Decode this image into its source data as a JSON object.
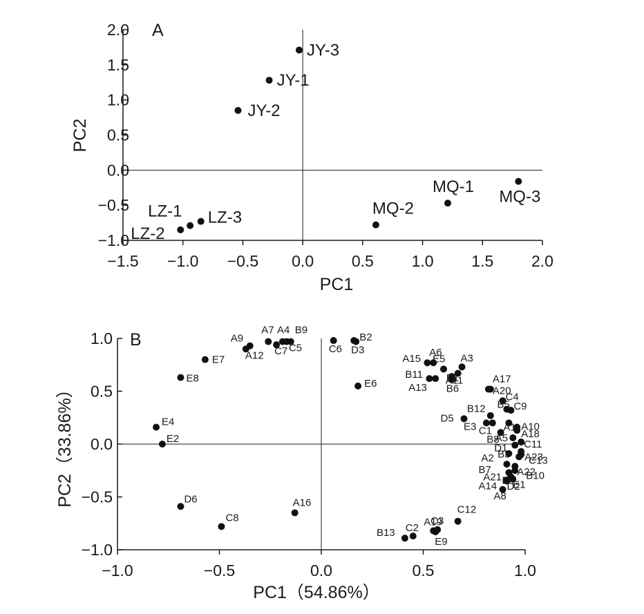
{
  "chart_data": [
    {
      "panel": "A",
      "type": "scatter",
      "xlabel": "PC1",
      "ylabel": "PC2",
      "xlim": [
        -1.5,
        2.0
      ],
      "ylim": [
        -1.0,
        2.0
      ],
      "xticks": [
        "−1.5",
        "−1.0",
        "−0.5",
        "0.0",
        "0.5",
        "1.0",
        "1.5",
        "2.0"
      ],
      "yticks": [
        "2.0",
        "1.5",
        "1.0",
        "0.5",
        "0.0",
        "−0.5",
        "−1.0"
      ],
      "reference_lines": {
        "x": 0,
        "y": 0
      },
      "points": [
        {
          "label": "JY-3",
          "x": -0.03,
          "y": 1.71
        },
        {
          "label": "JY-1",
          "x": -0.28,
          "y": 1.28
        },
        {
          "label": "JY-2",
          "x": -0.54,
          "y": 0.85
        },
        {
          "label": "MQ-1",
          "x": 1.21,
          "y": -0.47
        },
        {
          "label": "MQ-3",
          "x": 1.8,
          "y": -0.16
        },
        {
          "label": "MQ-2",
          "x": 0.61,
          "y": -0.78
        },
        {
          "label": "LZ-1",
          "x": -0.94,
          "y": -0.79
        },
        {
          "label": "LZ-2",
          "x": -1.02,
          "y": -0.85
        },
        {
          "label": "LZ-3",
          "x": -0.85,
          "y": -0.73
        }
      ]
    },
    {
      "panel": "B",
      "type": "scatter",
      "xlabel": "PC1（54.86%）",
      "ylabel": "PC2（33.86%）",
      "xlim": [
        -1.0,
        1.0
      ],
      "ylim": [
        -1.0,
        1.0
      ],
      "xticks": [
        "−1.0",
        "−0.5",
        "0.0",
        "0.5",
        "1.0"
      ],
      "yticks": [
        "1.0",
        "0.5",
        "0.0",
        "−0.5",
        "−1.0"
      ],
      "reference_lines": {
        "x": 0,
        "y": 0
      },
      "points": [
        {
          "label": "A7",
          "x": -0.26,
          "y": 0.97
        },
        {
          "label": "A4",
          "x": -0.19,
          "y": 0.97
        },
        {
          "label": "B9",
          "x": -0.15,
          "y": 0.97
        },
        {
          "label": "A9",
          "x": -0.35,
          "y": 0.93
        },
        {
          "label": "A12",
          "x": -0.37,
          "y": 0.9
        },
        {
          "label": "C7",
          "x": -0.22,
          "y": 0.94
        },
        {
          "label": "C5",
          "x": -0.17,
          "y": 0.97
        },
        {
          "label": "E7",
          "x": -0.57,
          "y": 0.8
        },
        {
          "label": "E8",
          "x": -0.69,
          "y": 0.63
        },
        {
          "label": "E4",
          "x": -0.81,
          "y": 0.16
        },
        {
          "label": "E2",
          "x": -0.78,
          "y": 0.0
        },
        {
          "label": "C6",
          "x": 0.06,
          "y": 0.98
        },
        {
          "label": "B2",
          "x": 0.16,
          "y": 0.98
        },
        {
          "label": "D3",
          "x": 0.17,
          "y": 0.97
        },
        {
          "label": "E6",
          "x": 0.18,
          "y": 0.55
        },
        {
          "label": "D6",
          "x": -0.69,
          "y": -0.59
        },
        {
          "label": "C8",
          "x": -0.49,
          "y": -0.78
        },
        {
          "label": "A16",
          "x": -0.13,
          "y": -0.65
        },
        {
          "label": "A15",
          "x": 0.52,
          "y": 0.77
        },
        {
          "label": "A6",
          "x": 0.55,
          "y": 0.77
        },
        {
          "label": "A3",
          "x": 0.69,
          "y": 0.73
        },
        {
          "label": "E5",
          "x": 0.6,
          "y": 0.71
        },
        {
          "label": "B11",
          "x": 0.53,
          "y": 0.62
        },
        {
          "label": "B1",
          "x": 0.64,
          "y": 0.64
        },
        {
          "label": "A17",
          "x": 0.83,
          "y": 0.52
        },
        {
          "label": "A11",
          "x": 0.67,
          "y": 0.67
        },
        {
          "label": "A13",
          "x": 0.56,
          "y": 0.62
        },
        {
          "label": "B6",
          "x": 0.64,
          "y": 0.61
        },
        {
          "label": "A20",
          "x": 0.82,
          "y": 0.52
        },
        {
          "label": "C4",
          "x": 0.89,
          "y": 0.41
        },
        {
          "label": "B5",
          "x": 0.91,
          "y": 0.33
        },
        {
          "label": "C9",
          "x": 0.93,
          "y": 0.32
        },
        {
          "label": "B12",
          "x": 0.83,
          "y": 0.27
        },
        {
          "label": "D5",
          "x": 0.7,
          "y": 0.24
        },
        {
          "label": "A1",
          "x": 0.92,
          "y": 0.2
        },
        {
          "label": "A10",
          "x": 0.96,
          "y": 0.16
        },
        {
          "label": "E3",
          "x": 0.81,
          "y": 0.2
        },
        {
          "label": "C1",
          "x": 0.84,
          "y": 0.2
        },
        {
          "label": "A5",
          "x": 0.88,
          "y": 0.11
        },
        {
          "label": "A18",
          "x": 0.96,
          "y": 0.13
        },
        {
          "label": "B8",
          "x": 0.94,
          "y": 0.06
        },
        {
          "label": "C11",
          "x": 0.98,
          "y": 0.02
        },
        {
          "label": "D1",
          "x": 0.95,
          "y": -0.01
        },
        {
          "label": "B3",
          "x": 0.98,
          "y": -0.07
        },
        {
          "label": "A23",
          "x": 0.98,
          "y": -0.1
        },
        {
          "label": "A2",
          "x": 0.92,
          "y": -0.09
        },
        {
          "label": "C13",
          "x": 0.97,
          "y": -0.12
        },
        {
          "label": "B7",
          "x": 0.91,
          "y": -0.19
        },
        {
          "label": "A22",
          "x": 0.95,
          "y": -0.21
        },
        {
          "label": "A21",
          "x": 0.92,
          "y": -0.27
        },
        {
          "label": "B10",
          "x": 0.95,
          "y": -0.25
        },
        {
          "label": "B4",
          "x": 0.93,
          "y": -0.31
        },
        {
          "label": "A14",
          "x": 0.91,
          "y": -0.35
        },
        {
          "label": "D2",
          "x": 0.91,
          "y": -0.34
        },
        {
          "label": "E1",
          "x": 0.94,
          "y": -0.33
        },
        {
          "label": "A8",
          "x": 0.89,
          "y": -0.43
        },
        {
          "label": "C12",
          "x": 0.67,
          "y": -0.73
        },
        {
          "label": "A19",
          "x": 0.55,
          "y": -0.82
        },
        {
          "label": "C3",
          "x": 0.57,
          "y": -0.81
        },
        {
          "label": "E9",
          "x": 0.56,
          "y": -0.83
        },
        {
          "label": "C2",
          "x": 0.45,
          "y": -0.87
        },
        {
          "label": "B13",
          "x": 0.41,
          "y": -0.89
        }
      ]
    }
  ]
}
